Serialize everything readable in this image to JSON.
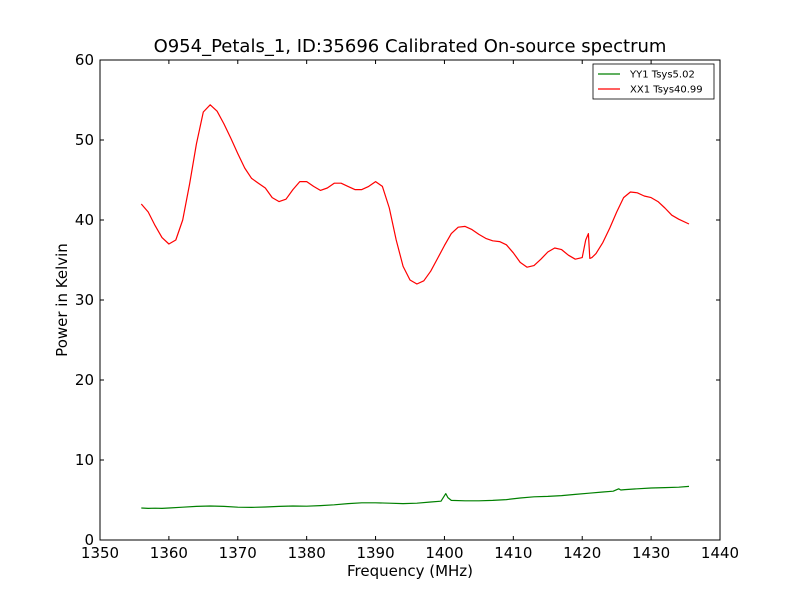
{
  "chart_data": {
    "type": "line",
    "title": "O954_Petals_1, ID:35696 Calibrated On-source spectrum",
    "xlabel": "Frequency (MHz)",
    "ylabel": "Power in Kelvin",
    "xlim": [
      1350,
      1440
    ],
    "ylim": [
      0,
      60
    ],
    "xticks": [
      1350,
      1360,
      1370,
      1380,
      1390,
      1400,
      1410,
      1420,
      1430,
      1440
    ],
    "yticks": [
      0,
      10,
      20,
      30,
      40,
      50,
      60
    ],
    "legend_position": "top-right",
    "series": [
      {
        "name": "YY1 Tsys5.02",
        "color": "#008000",
        "x": [
          1356,
          1357,
          1358,
          1359,
          1360,
          1362,
          1364,
          1366,
          1368,
          1370,
          1372,
          1374,
          1376,
          1378,
          1380,
          1382,
          1384,
          1386,
          1388,
          1390,
          1392,
          1394,
          1396,
          1398,
          1399.5,
          1400.2,
          1400.5,
          1401,
          1403,
          1405,
          1407,
          1409,
          1411,
          1413,
          1415,
          1417,
          1419,
          1421,
          1423,
          1424.5,
          1425.3,
          1425.6,
          1426.2,
          1428,
          1430,
          1432,
          1434,
          1435.5
        ],
        "y": [
          4.0,
          3.95,
          3.97,
          3.95,
          4.0,
          4.1,
          4.2,
          4.25,
          4.2,
          4.1,
          4.08,
          4.12,
          4.2,
          4.25,
          4.22,
          4.3,
          4.4,
          4.55,
          4.65,
          4.65,
          4.6,
          4.55,
          4.6,
          4.75,
          4.85,
          5.8,
          5.3,
          4.95,
          4.9,
          4.9,
          4.95,
          5.05,
          5.25,
          5.4,
          5.45,
          5.55,
          5.7,
          5.85,
          6.0,
          6.1,
          6.4,
          6.25,
          6.3,
          6.4,
          6.5,
          6.55,
          6.6,
          6.7
        ]
      },
      {
        "name": "XX1 Tsys40.99",
        "color": "#ff0000",
        "x": [
          1356,
          1357,
          1358,
          1359,
          1360,
          1361,
          1362,
          1363,
          1364,
          1365,
          1366,
          1367,
          1368,
          1369,
          1370,
          1371,
          1372,
          1373,
          1374,
          1375,
          1376,
          1377,
          1378,
          1379,
          1380,
          1381,
          1382,
          1383,
          1384,
          1385,
          1386,
          1387,
          1388,
          1389,
          1390,
          1391,
          1392,
          1393,
          1394,
          1395,
          1396,
          1397,
          1398,
          1399,
          1400,
          1401,
          1402,
          1403,
          1404,
          1405,
          1406,
          1407,
          1408,
          1409,
          1410,
          1411,
          1412,
          1413,
          1414,
          1415,
          1416,
          1417,
          1418,
          1419,
          1420,
          1420.5,
          1420.9,
          1421.1,
          1421.4,
          1422,
          1423,
          1424,
          1425,
          1426,
          1427,
          1428,
          1429,
          1430,
          1431,
          1432,
          1433,
          1434,
          1435.5
        ],
        "y": [
          42.0,
          41.0,
          39.3,
          37.8,
          37.0,
          37.5,
          40.0,
          44.5,
          49.5,
          53.5,
          54.4,
          53.6,
          52.0,
          50.2,
          48.3,
          46.5,
          45.2,
          44.6,
          44.0,
          42.8,
          42.3,
          42.6,
          43.8,
          44.8,
          44.8,
          44.2,
          43.7,
          44.0,
          44.6,
          44.6,
          44.2,
          43.8,
          43.8,
          44.2,
          44.8,
          44.2,
          41.5,
          37.5,
          34.2,
          32.5,
          32.0,
          32.4,
          33.6,
          35.2,
          36.8,
          38.3,
          39.1,
          39.2,
          38.8,
          38.2,
          37.7,
          37.4,
          37.3,
          36.9,
          35.9,
          34.7,
          34.1,
          34.3,
          35.1,
          36.0,
          36.5,
          36.3,
          35.6,
          35.1,
          35.3,
          37.5,
          38.3,
          35.2,
          35.3,
          35.8,
          37.2,
          39.0,
          41.0,
          42.8,
          43.5,
          43.4,
          43.0,
          42.8,
          42.3,
          41.5,
          40.6,
          40.1,
          39.5
        ]
      }
    ]
  }
}
